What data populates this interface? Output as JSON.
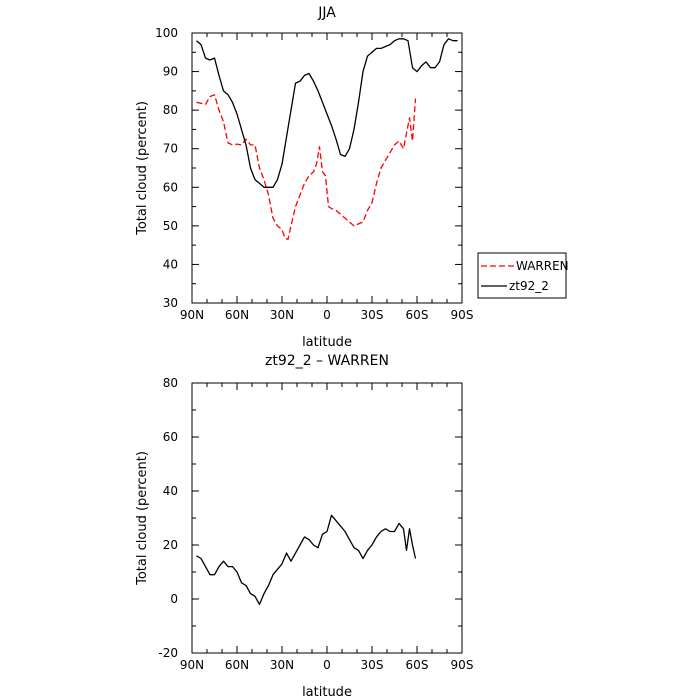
{
  "chart_data": [
    {
      "type": "line",
      "title": "JJA",
      "xlabel": "latitude",
      "ylabel": "Total cloud (percent)",
      "xlim": [
        90,
        -90
      ],
      "ylim": [
        30,
        100
      ],
      "x_ticks": [
        {
          "value": 90,
          "label": "90N"
        },
        {
          "value": 60,
          "label": "60N"
        },
        {
          "value": 30,
          "label": "30N"
        },
        {
          "value": 0,
          "label": "0"
        },
        {
          "value": -30,
          "label": "30S"
        },
        {
          "value": -60,
          "label": "60S"
        },
        {
          "value": -90,
          "label": "90S"
        }
      ],
      "y_ticks": [
        30,
        40,
        50,
        60,
        70,
        80,
        90,
        100
      ],
      "legend_position": "right",
      "series": [
        {
          "name": "WARREN",
          "color": "#ff0000",
          "dash": "dashed",
          "x": [
            87,
            84,
            81,
            78,
            75,
            72,
            69,
            66,
            63,
            60,
            57,
            54,
            51,
            48,
            45,
            42,
            39,
            36,
            33,
            30,
            28,
            26,
            24,
            21,
            18,
            15,
            12,
            9,
            7,
            5,
            3,
            1,
            -1,
            -3,
            -6,
            -9,
            -12,
            -15,
            -18,
            -21,
            -24,
            -27,
            -30,
            -33,
            -36,
            -39,
            -42,
            -45,
            -48,
            -51,
            -53,
            -55,
            -57,
            -59
          ],
          "y": [
            82,
            81.8,
            81.5,
            83.5,
            84,
            80,
            77,
            71.5,
            71,
            71.2,
            71,
            72.5,
            71,
            71,
            65,
            62,
            58,
            52,
            50,
            49,
            46.8,
            46.5,
            50,
            55,
            58,
            61,
            63,
            64,
            66,
            70.5,
            64,
            63,
            55,
            54.5,
            54,
            53,
            52,
            51,
            50,
            50.5,
            51,
            54,
            56,
            61,
            65,
            67,
            69,
            71,
            72,
            70,
            74,
            78,
            72,
            83
          ]
        },
        {
          "name": "zt92_2",
          "color": "#000000",
          "dash": "solid",
          "x": [
            87,
            84,
            81,
            78,
            75,
            72,
            69,
            66,
            63,
            60,
            57,
            54,
            51,
            48,
            45,
            42,
            39,
            36,
            33,
            30,
            27,
            24,
            21,
            18,
            15,
            12,
            9,
            6,
            3,
            0,
            -3,
            -6,
            -9,
            -12,
            -15,
            -18,
            -21,
            -24,
            -27,
            -30,
            -33,
            -36,
            -39,
            -42,
            -45,
            -48,
            -51,
            -54,
            -57,
            -60,
            -63,
            -66,
            -69,
            -72,
            -75,
            -78,
            -81,
            -84,
            -87
          ],
          "y": [
            98,
            97,
            93.5,
            93,
            93.5,
            89,
            85,
            84,
            82,
            79,
            75,
            71,
            65,
            62,
            61,
            60,
            60,
            60,
            62,
            66,
            73,
            80,
            87,
            87.5,
            89,
            89.5,
            87.5,
            85,
            82,
            79,
            76,
            72.5,
            68.5,
            68,
            70,
            75,
            82,
            90,
            94,
            95,
            96,
            96,
            96.5,
            97,
            98,
            98.5,
            98.5,
            98,
            91,
            90,
            91.5,
            92.5,
            91,
            91,
            92.5,
            97,
            98.5,
            98,
            98
          ]
        }
      ]
    },
    {
      "type": "line",
      "title": "zt92_2 – WARREN",
      "xlabel": "latitude",
      "ylabel": "Total cloud (percent)",
      "xlim": [
        90,
        -90
      ],
      "ylim": [
        -20,
        80
      ],
      "x_ticks": [
        {
          "value": 90,
          "label": "90N"
        },
        {
          "value": 60,
          "label": "60N"
        },
        {
          "value": 30,
          "label": "30N"
        },
        {
          "value": 0,
          "label": "0"
        },
        {
          "value": -30,
          "label": "30S"
        },
        {
          "value": -60,
          "label": "60S"
        },
        {
          "value": -90,
          "label": "90S"
        }
      ],
      "y_ticks": [
        -20,
        0,
        20,
        40,
        60,
        80
      ],
      "series": [
        {
          "color": "#000000",
          "dash": "solid",
          "x": [
            87,
            84,
            81,
            78,
            75,
            72,
            69,
            66,
            63,
            60,
            57,
            54,
            51,
            48,
            45,
            42,
            39,
            36,
            33,
            30,
            27,
            24,
            21,
            18,
            15,
            12,
            9,
            6,
            3,
            0,
            -3,
            -6,
            -9,
            -12,
            -15,
            -18,
            -21,
            -24,
            -27,
            -30,
            -33,
            -36,
            -39,
            -42,
            -45,
            -48,
            -51,
            -53,
            -55,
            -57,
            -59
          ],
          "y": [
            16,
            15,
            12,
            9,
            9,
            12,
            14,
            12,
            12,
            10,
            6,
            5,
            2,
            1,
            -2,
            2,
            5,
            9,
            11,
            13,
            17,
            14,
            17,
            20,
            23,
            22,
            20,
            19,
            24,
            25,
            31,
            29,
            27,
            25,
            22,
            19,
            18,
            15,
            18,
            20,
            23,
            25,
            26,
            25,
            25,
            28,
            26,
            18,
            26,
            20,
            15
          ]
        }
      ]
    }
  ]
}
